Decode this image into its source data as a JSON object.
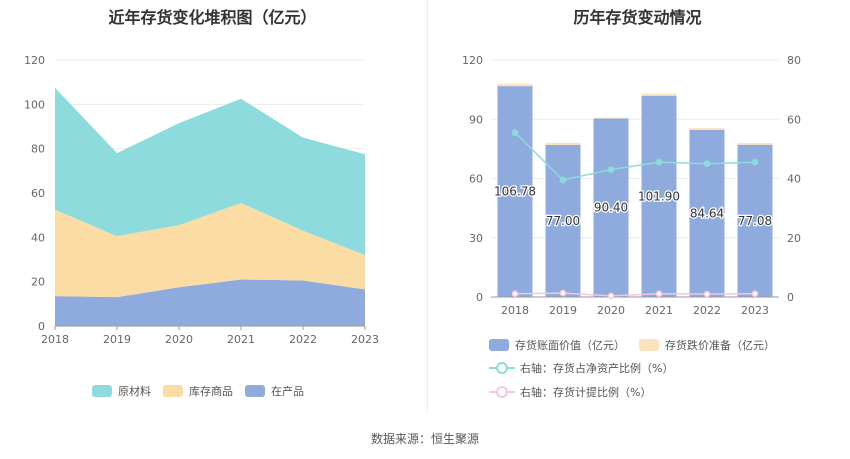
{
  "chart_data": [
    {
      "type": "area",
      "stacked": true,
      "title": "近年存货变化堆积图（亿元）",
      "categories": [
        "2018",
        "2019",
        "2020",
        "2021",
        "2022",
        "2023"
      ],
      "ylim": [
        0,
        120
      ],
      "yticks": [
        0,
        20,
        40,
        60,
        80,
        100,
        120
      ],
      "series": [
        {
          "name": "在产品",
          "color": "#8faadc",
          "values": [
            13.5,
            13.0,
            17.5,
            21.0,
            20.5,
            16.5
          ]
        },
        {
          "name": "库存商品",
          "color": "#fcdca5",
          "values": [
            39.0,
            27.5,
            28.0,
            34.5,
            22.5,
            15.5
          ]
        },
        {
          "name": "原材料",
          "color": "#8ddbdd",
          "values": [
            55.0,
            37.5,
            46.0,
            47.0,
            42.0,
            45.5
          ]
        }
      ],
      "legend": [
        "原材料",
        "库存商品",
        "在产品"
      ],
      "legend_colors": [
        "#8ddbdd",
        "#fcdca5",
        "#8faadc"
      ]
    },
    {
      "type": "bar",
      "stacked": true,
      "title": "历年存货变动情况",
      "categories": [
        "2018",
        "2019",
        "2020",
        "2021",
        "2022",
        "2023"
      ],
      "ylim": [
        0,
        120
      ],
      "yticks": [
        0,
        30,
        60,
        90,
        120
      ],
      "y2lim": [
        0,
        80
      ],
      "y2ticks": [
        0,
        20,
        40,
        60,
        80
      ],
      "bars": [
        {
          "name": "存货账面价值（亿元）",
          "color": "#8faadc",
          "values": [
            106.78,
            77.0,
            90.4,
            101.9,
            84.64,
            77.08
          ],
          "labels": [
            "106.78",
            "77.00",
            "90.40",
            "101.90",
            "84.64",
            "77.08"
          ]
        },
        {
          "name": "存货跌价准备（亿元）",
          "color": "#fce3bd",
          "values": [
            1.2,
            1.1,
            0.3,
            1.1,
            0.9,
            0.9
          ]
        }
      ],
      "lines": [
        {
          "name": "右轴：存货占净资产比例（%）",
          "color": "#8ddbdd",
          "axis": "right",
          "values": [
            55.5,
            39.5,
            43.0,
            45.5,
            45.0,
            45.5
          ]
        },
        {
          "name": "右轴：存货计提比例（%）",
          "color": "#f4c6df",
          "axis": "right",
          "values": [
            1.1,
            1.3,
            0.4,
            1.1,
            1.0,
            1.1
          ]
        }
      ]
    }
  ],
  "source": "数据来源：恒生聚源"
}
